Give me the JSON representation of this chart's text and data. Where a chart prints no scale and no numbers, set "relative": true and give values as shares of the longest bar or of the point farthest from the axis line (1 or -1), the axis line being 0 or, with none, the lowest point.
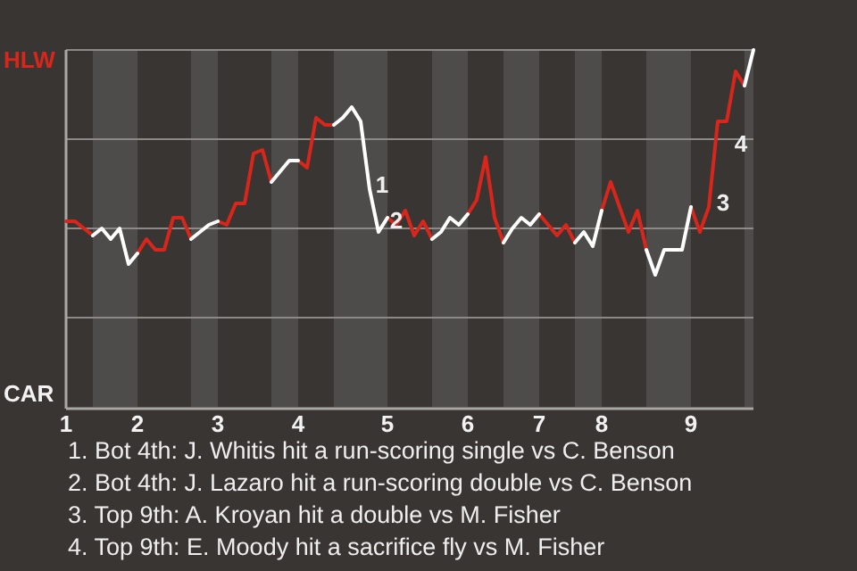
{
  "chart_data": {
    "type": "line",
    "relative": true,
    "categories": [
      "1",
      null,
      null,
      null,
      null,
      null,
      null,
      null,
      "2",
      null,
      null,
      null,
      null,
      null,
      null,
      null,
      null,
      "3",
      null,
      null,
      null,
      null,
      null,
      null,
      null,
      null,
      "4",
      null,
      null,
      null,
      null,
      null,
      null,
      null,
      null,
      null,
      "5",
      null,
      null,
      null,
      null,
      null,
      null,
      null,
      null,
      "6",
      null,
      null,
      null,
      null,
      null,
      null,
      null,
      "7",
      null,
      null,
      null,
      null,
      null,
      null,
      "8",
      null,
      null,
      null,
      null,
      null,
      null,
      null,
      null,
      null,
      "9",
      null,
      null,
      null,
      null,
      null,
      null,
      null
    ],
    "grid": "y",
    "marker": "none",
    "line_style": "solid",
    "series": [
      {
        "color": "#d8261c",
        "values": [
          0.52,
          0.52,
          0.5,
          0.48,
          null,
          null,
          null,
          null,
          0.43,
          0.47,
          0.44,
          0.44,
          0.53,
          0.53,
          0.47,
          null,
          null,
          0.52,
          0.51,
          0.57,
          0.57,
          0.71,
          0.72,
          0.63,
          null,
          null,
          0.69,
          0.67,
          0.81,
          0.79,
          0.79,
          null,
          null,
          null,
          null,
          null,
          0.53,
          0.51,
          0.55,
          0.48,
          0.52,
          0.47,
          null,
          null,
          null,
          0.54,
          0.58,
          0.7,
          0.53,
          0.46,
          null,
          null,
          null,
          0.54,
          0.51,
          0.48,
          0.51,
          0.46,
          null,
          null,
          0.55,
          0.63,
          0.56,
          0.49,
          0.55,
          0.44,
          null,
          null,
          null,
          null,
          0.56,
          0.49,
          0.56,
          0.8,
          0.8,
          0.94,
          0.9,
          null
        ]
      },
      {
        "color": "#ffffff",
        "values": [
          null,
          null,
          null,
          0.48,
          0.5,
          0.47,
          0.5,
          0.4,
          0.43,
          null,
          null,
          null,
          null,
          null,
          0.47,
          0.49,
          0.51,
          0.52,
          null,
          null,
          null,
          null,
          null,
          0.63,
          0.66,
          0.69,
          0.69,
          null,
          null,
          null,
          0.79,
          0.81,
          0.84,
          0.8,
          0.61,
          0.49,
          0.53,
          null,
          null,
          null,
          null,
          0.47,
          0.49,
          0.53,
          0.51,
          0.54,
          null,
          null,
          null,
          0.46,
          0.5,
          0.53,
          0.51,
          0.54,
          null,
          null,
          null,
          0.46,
          0.49,
          0.45,
          0.55,
          null,
          null,
          null,
          null,
          0.44,
          0.37,
          0.44,
          0.44,
          0.44,
          0.56,
          null,
          null,
          null,
          null,
          null,
          0.9,
          1
        ]
      }
    ],
    "annotations": [
      "HLW",
      "CAR",
      "1",
      "2",
      "3",
      "4",
      "1. Bot 4th: J. Whitis hit a run-scoring single vs C. Benson",
      "2. Bot 4th: J. Lazaro hit a run-scoring double vs C. Benson",
      "3. Top 9th: A. Kroyan hit a double vs M. Fisher",
      "4. Top 9th: E. Moody hit a sacrifice fly vs M. Fisher"
    ]
  }
}
